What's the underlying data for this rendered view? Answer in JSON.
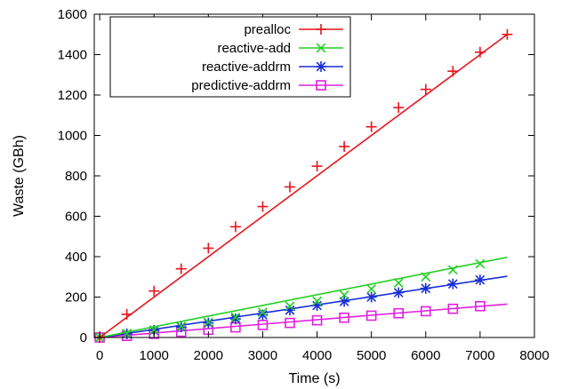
{
  "chart_data": {
    "type": "line",
    "xlabel": "Time (s)",
    "ylabel": "Waste (GBh)",
    "xlim": [
      -100,
      8000
    ],
    "ylim": [
      0,
      1600
    ],
    "xticks": [
      0,
      1000,
      2000,
      3000,
      4000,
      5000,
      6000,
      7000,
      8000
    ],
    "yticks": [
      0,
      200,
      400,
      600,
      800,
      1000,
      1200,
      1400,
      1600
    ],
    "legend_position": "top-left",
    "grid": false,
    "series": [
      {
        "name": "prealloc",
        "color": "#e8141c",
        "marker": "plus",
        "line": [
          [
            0,
            0
          ],
          [
            7500,
            1500
          ]
        ],
        "points": [
          [
            0,
            0
          ],
          [
            500,
            115
          ],
          [
            1000,
            230
          ],
          [
            1500,
            340
          ],
          [
            2000,
            442
          ],
          [
            2500,
            548
          ],
          [
            3000,
            648
          ],
          [
            3500,
            745
          ],
          [
            4000,
            848
          ],
          [
            4500,
            945
          ],
          [
            5000,
            1043
          ],
          [
            5500,
            1138
          ],
          [
            6000,
            1228
          ],
          [
            6500,
            1318
          ],
          [
            7000,
            1412
          ],
          [
            7500,
            1500
          ]
        ]
      },
      {
        "name": "reactive-add",
        "color": "#22d022",
        "marker": "x",
        "line": [
          [
            0,
            0
          ],
          [
            7500,
            397
          ]
        ],
        "points": [
          [
            0,
            0
          ],
          [
            500,
            20
          ],
          [
            1000,
            38
          ],
          [
            1500,
            55
          ],
          [
            2000,
            75
          ],
          [
            2500,
            100
          ],
          [
            3000,
            125
          ],
          [
            3500,
            155
          ],
          [
            4000,
            180
          ],
          [
            4500,
            210
          ],
          [
            5000,
            240
          ],
          [
            5500,
            270
          ],
          [
            6000,
            300
          ],
          [
            6500,
            335
          ],
          [
            7000,
            365
          ]
        ]
      },
      {
        "name": "reactive-addrm",
        "color": "#1a2fd6",
        "marker": "asterisk",
        "line": [
          [
            0,
            0
          ],
          [
            7500,
            303
          ]
        ],
        "points": [
          [
            0,
            0
          ],
          [
            500,
            18
          ],
          [
            1000,
            35
          ],
          [
            1500,
            52
          ],
          [
            2000,
            72
          ],
          [
            2500,
            92
          ],
          [
            3000,
            112
          ],
          [
            3500,
            135
          ],
          [
            4000,
            158
          ],
          [
            4500,
            178
          ],
          [
            5000,
            200
          ],
          [
            5500,
            222
          ],
          [
            6000,
            243
          ],
          [
            6500,
            265
          ],
          [
            7000,
            285
          ]
        ]
      },
      {
        "name": "predictive-addrm",
        "color": "#e020e0",
        "marker": "square",
        "line": [
          [
            0,
            0
          ],
          [
            7500,
            165
          ]
        ],
        "points": [
          [
            0,
            0
          ],
          [
            500,
            8
          ],
          [
            1000,
            18
          ],
          [
            1500,
            28
          ],
          [
            2000,
            38
          ],
          [
            2500,
            50
          ],
          [
            3000,
            62
          ],
          [
            3500,
            72
          ],
          [
            4000,
            85
          ],
          [
            4500,
            98
          ],
          [
            5000,
            108
          ],
          [
            5500,
            120
          ],
          [
            6000,
            130
          ],
          [
            6500,
            142
          ],
          [
            7000,
            155
          ]
        ]
      }
    ]
  }
}
